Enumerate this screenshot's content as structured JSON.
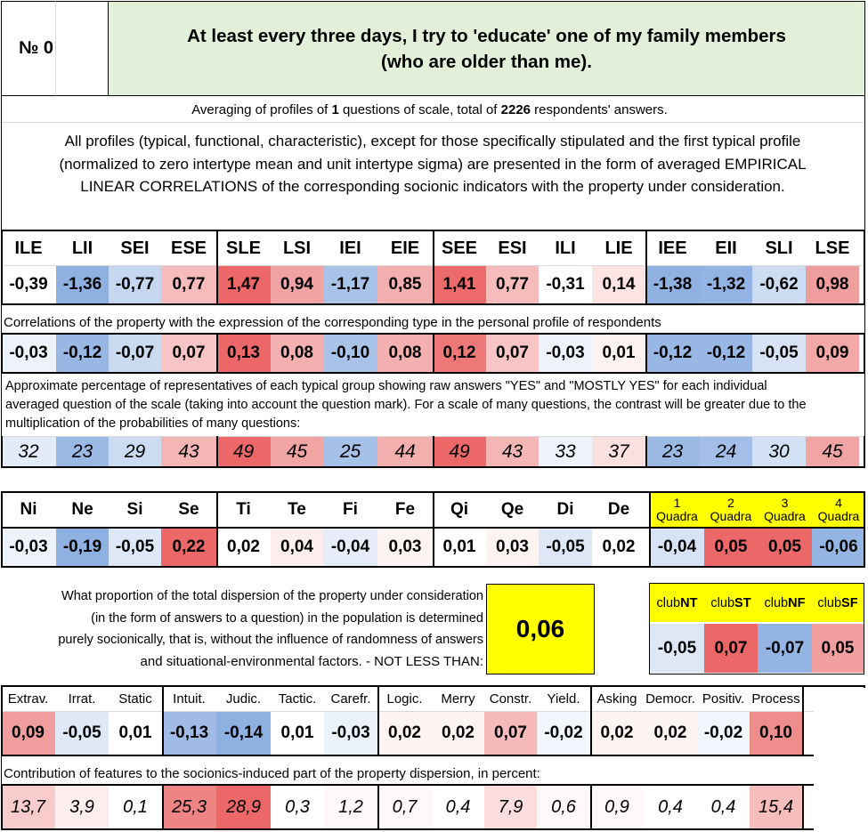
{
  "header": {
    "number_label": "№ 0",
    "title_line1": "At least every three days, I try to 'educate' one of my family members",
    "title_line2": "(who are older than me)."
  },
  "summary": {
    "prefix": "Averaging of profiles of ",
    "questions": "1",
    "middle": " questions of scale, total of ",
    "respondents": "2226",
    "suffix": " respondents' answers."
  },
  "description": {
    "line1": "All profiles (typical, functional, characteristic), except for those specifically stipulated and the first typical profile",
    "line2": "(normalized to zero intertype mean and unit intertype sigma) are presented in the form of averaged EMPIRICAL",
    "line3": "LINEAR CORRELATIONS of the corresponding socionic indicators with the property under consideration."
  },
  "types": {
    "labels": [
      "ILE",
      "LII",
      "SEI",
      "ESE",
      "SLE",
      "LSI",
      "IEI",
      "EIE",
      "SEE",
      "ESI",
      "ILI",
      "LIE",
      "IEE",
      "EII",
      "SLI",
      "LSE"
    ],
    "profile": [
      "-0,39",
      "-1,36",
      "-0,77",
      "0,77",
      "1,47",
      "0,94",
      "-1,17",
      "0,85",
      "1,41",
      "0,77",
      "-0,31",
      "0,14",
      "-1,38",
      "-1,32",
      "-0,62",
      "0,98"
    ],
    "profile_colors": [
      "#ffffff",
      "#8fb1e2",
      "#c4d6f0",
      "#f6bcbc",
      "#ec6767",
      "#f1a3a3",
      "#a8c2e8",
      "#f3afaf",
      "#ec6a6a",
      "#f6bcbc",
      "#ffffff",
      "#fde4e4",
      "#8fb1e2",
      "#92b3e3",
      "#ccdcf2",
      "#f09d9d"
    ],
    "correlation_caption": "Correlations of the property with the expression of the corresponding type in the personal profile of respondents",
    "correlations": [
      "-0,03",
      "-0,12",
      "-0,07",
      "0,07",
      "0,13",
      "0,08",
      "-0,10",
      "0,08",
      "0,12",
      "0,07",
      "-0,03",
      "0,01",
      "-0,12",
      "-0,12",
      "-0,05",
      "0,09"
    ],
    "correlation_colors": [
      "#eef3fb",
      "#98b7e4",
      "#c9daf1",
      "#f7c5c5",
      "#ec6767",
      "#f4b0b0",
      "#a9c3e8",
      "#f4b0b0",
      "#ee7878",
      "#f7c5c5",
      "#eef3fb",
      "#fdf1f1",
      "#98b7e4",
      "#98b7e4",
      "#d7e3f4",
      "#f3a8a8"
    ],
    "percentage_caption_line1": "Approximate percentage of representatives of each typical group showing raw answers \"YES\" and \"MOSTLY YES\" for each individual",
    "percentage_caption_line2": "averaged question of the scale (taking into account the question mark). For a scale of many questions, the contrast will be greater due to the",
    "percentage_caption_line3": "multiplication of the probabilities of many questions:",
    "percentages": [
      "32",
      "23",
      "29",
      "43",
      "49",
      "45",
      "25",
      "44",
      "49",
      "43",
      "33",
      "37",
      "23",
      "24",
      "30",
      "45"
    ],
    "percentage_colors": [
      "#e3ebf8",
      "#9bb9e5",
      "#cbdbf1",
      "#f4b5b5",
      "#ec6868",
      "#f1a4a4",
      "#a6c1e7",
      "#f3aeae",
      "#ec6868",
      "#f4b5b5",
      "#eef3fb",
      "#fbe0e0",
      "#9bb9e5",
      "#a3bfe7",
      "#d3e1f4",
      "#f1a4a4"
    ]
  },
  "functions": {
    "labels": [
      "Ni",
      "Ne",
      "Si",
      "Se",
      "Ti",
      "Te",
      "Fi",
      "Fe",
      "Qi",
      "Qe",
      "Di",
      "De"
    ],
    "values": [
      "-0,03",
      "-0,19",
      "-0,05",
      "0,22",
      "0,02",
      "0,04",
      "-0,04",
      "0,03",
      "0,01",
      "0,03",
      "-0,05",
      "0,02"
    ],
    "colors": [
      "#eef3fb",
      "#8fb1e2",
      "#dde7f6",
      "#ec6767",
      "#ffffff",
      "#fdeeee",
      "#e6edf9",
      "#fdf3f3",
      "#ffffff",
      "#fdf3f3",
      "#dde7f6",
      "#ffffff"
    ]
  },
  "quadras": {
    "labels": [
      [
        "1",
        "Quadra"
      ],
      [
        "2",
        "Quadra"
      ],
      [
        "3",
        "Quadra"
      ],
      [
        "4",
        "Quadra"
      ]
    ],
    "values": [
      "-0,04",
      "0,05",
      "0,05",
      "-0,06"
    ],
    "colors": [
      "#d7e3f4",
      "#ec6767",
      "#ec6767",
      "#94b4e3"
    ],
    "header_bg": "#ffff00"
  },
  "dispersion": {
    "line1": "What proportion of the total dispersion of the property under consideration",
    "line2": "(in the form of answers to a question) in the population is determined",
    "line3": "purely socionically, that is, without the influence of randomness of answers",
    "line4": "and situational-environmental factors. - NOT LESS THAN:",
    "value": "0,06",
    "value_bg": "#ffff00"
  },
  "clubs": {
    "prefix": "club",
    "labels": [
      "NT",
      "ST",
      "NF",
      "SF"
    ],
    "values": [
      "-0,05",
      "0,07",
      "-0,07",
      "0,05"
    ],
    "colors": [
      "#dde7f6",
      "#ec6767",
      "#94b4e3",
      "#f19f9f"
    ],
    "header_bg": "#ffff00"
  },
  "traits": {
    "labels": [
      "Extrav.",
      "Irrat.",
      "Static",
      "Intuit.",
      "Judic.",
      "Tactic.",
      "Carefr.",
      "Logic.",
      "Merry",
      "Constr.",
      "Yield.",
      "Asking",
      "Democr.",
      "Positiv.",
      "Process"
    ],
    "values": [
      "0,09",
      "-0,05",
      "0,01",
      "-0,13",
      "-0,14",
      "0,01",
      "-0,03",
      "0,02",
      "0,02",
      "0,07",
      "-0,02",
      "0,02",
      "0,02",
      "-0,02",
      "0,10"
    ],
    "colors": [
      "#f09d9d",
      "#dfe8f7",
      "#ffffff",
      "#a0bce6",
      "#8fb1e2",
      "#ffffff",
      "#ebf1fa",
      "#fdf3f3",
      "#fdf3f3",
      "#f6baba",
      "#f1f5fc",
      "#fdf3f3",
      "#fdf3f3",
      "#f1f5fc",
      "#ef8c8c"
    ],
    "contribution_caption": "Contribution of features to the socionics-induced part of the property dispersion, in percent:",
    "contributions": [
      "13,7",
      "3,9",
      "0,1",
      "25,3",
      "28,9",
      "0,3",
      "1,2",
      "0,7",
      "0,4",
      "7,9",
      "0,6",
      "0,9",
      "0,4",
      "0,4",
      "15,4"
    ],
    "contribution_colors": [
      "#f8cccc",
      "#fdeeee",
      "#ffffff",
      "#ef8484",
      "#ec6767",
      "#ffffff",
      "#fef8f8",
      "#fef8f8",
      "#ffffff",
      "#fbdddd",
      "#fef8f8",
      "#fef8f8",
      "#ffffff",
      "#ffffff",
      "#f6bdbd"
    ]
  },
  "colors": {
    "title_bg": "#e2efd9",
    "border": "#000000",
    "grid": "#d9d9d9"
  }
}
